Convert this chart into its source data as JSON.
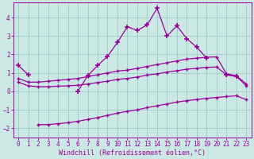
{
  "title": "",
  "xlabel": "Windchill (Refroidissement éolien,°C)",
  "ylabel": "",
  "background_color": "#cce8e4",
  "grid_color": "#99cccc",
  "line_color": "#990099",
  "xlim": [
    -0.5,
    23.5
  ],
  "ylim": [
    -2.5,
    4.8
  ],
  "x_main": [
    0,
    1,
    2,
    3,
    4,
    5,
    6,
    7,
    8,
    9,
    10,
    11,
    12,
    13,
    14,
    15,
    16,
    17,
    18,
    19,
    20,
    21,
    22,
    23
  ],
  "y_main": [
    1.4,
    0.9,
    null,
    null,
    null,
    null,
    0.0,
    0.85,
    1.4,
    1.9,
    2.65,
    3.5,
    3.3,
    3.6,
    4.5,
    3.0,
    3.55,
    2.85,
    2.4,
    1.8,
    null,
    0.9,
    0.8,
    null
  ],
  "x_upper1": [
    0,
    1,
    2,
    3,
    4,
    5,
    6,
    7,
    8,
    9,
    10,
    11,
    12,
    13,
    14,
    15,
    16,
    17,
    18,
    19,
    20,
    21,
    22,
    23
  ],
  "y_upper1": [
    0.7,
    0.5,
    0.5,
    0.55,
    0.6,
    0.65,
    0.7,
    0.8,
    0.9,
    1.0,
    1.1,
    1.15,
    1.25,
    1.35,
    1.45,
    1.55,
    1.65,
    1.75,
    1.8,
    1.85,
    1.87,
    0.95,
    0.85,
    0.4
  ],
  "x_upper2": [
    0,
    1,
    2,
    3,
    4,
    5,
    6,
    7,
    8,
    9,
    10,
    11,
    12,
    13,
    14,
    15,
    16,
    17,
    18,
    19,
    20,
    21,
    22,
    23
  ],
  "y_upper2": [
    0.5,
    0.3,
    0.25,
    0.25,
    0.28,
    0.3,
    0.33,
    0.4,
    0.48,
    0.55,
    0.65,
    0.7,
    0.78,
    0.88,
    0.95,
    1.05,
    1.12,
    1.2,
    1.25,
    1.3,
    1.32,
    0.9,
    0.82,
    0.3
  ],
  "x_lower": [
    0,
    1,
    2,
    3,
    4,
    5,
    6,
    7,
    8,
    9,
    10,
    11,
    12,
    13,
    14,
    15,
    16,
    17,
    18,
    19,
    20,
    21,
    22,
    23
  ],
  "y_lower": [
    null,
    null,
    -1.8,
    -1.8,
    -1.75,
    -1.7,
    -1.62,
    -1.52,
    -1.42,
    -1.3,
    -1.18,
    -1.08,
    -1.0,
    -0.88,
    -0.78,
    -0.68,
    -0.58,
    -0.5,
    -0.44,
    -0.38,
    -0.33,
    -0.28,
    -0.24,
    -0.45
  ],
  "yticks": [
    -2,
    -1,
    0,
    1,
    2,
    3,
    4
  ],
  "xticks": [
    0,
    1,
    2,
    3,
    4,
    5,
    6,
    7,
    8,
    9,
    10,
    11,
    12,
    13,
    14,
    15,
    16,
    17,
    18,
    19,
    20,
    21,
    22,
    23
  ],
  "xlabel_fontsize": 6.0,
  "tick_fontsize": 5.5
}
